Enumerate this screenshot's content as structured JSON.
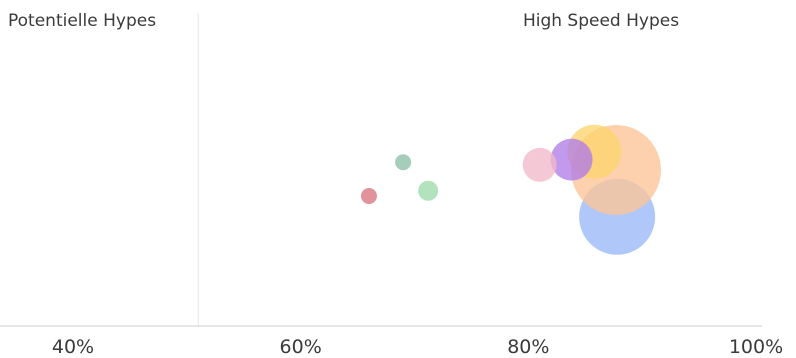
{
  "chart_data": {
    "type": "scatter",
    "quadrant_labels": {
      "left": "Potentielle Hypes",
      "right": "High Speed Hypes"
    },
    "x_ticks": [
      "40%",
      "60%",
      "80%",
      "100%"
    ],
    "xlim": [
      40,
      100
    ],
    "ylim": [
      0,
      100
    ],
    "divider_x": 51,
    "grid": false,
    "points": [
      {
        "x": 87.8,
        "y": 32,
        "size": 38,
        "color": "#9ab8f7"
      },
      {
        "x": 87.7,
        "y": 50,
        "size": 45,
        "color": "#fcc497"
      },
      {
        "x": 85.8,
        "y": 57,
        "size": 27,
        "color": "#fdd36e"
      },
      {
        "x": 83.8,
        "y": 54,
        "size": 21,
        "color": "#b07ce8"
      },
      {
        "x": 81.0,
        "y": 52,
        "size": 17,
        "color": "#f2b8c9"
      },
      {
        "x": 69.0,
        "y": 53,
        "size": 8,
        "color": "#8cbfa5"
      },
      {
        "x": 71.2,
        "y": 42,
        "size": 10,
        "color": "#9ddba9"
      },
      {
        "x": 66.0,
        "y": 40,
        "size": 8,
        "color": "#d9737f"
      }
    ]
  }
}
